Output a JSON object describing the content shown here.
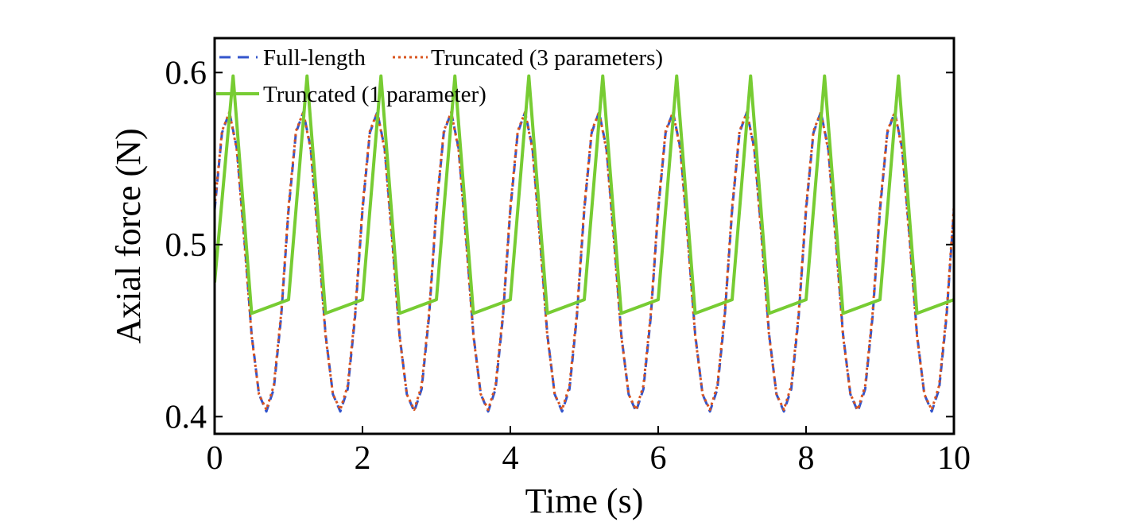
{
  "chart_data": {
    "type": "line",
    "xlabel": "Time (s)",
    "ylabel": "Axial force (N)",
    "xlim": [
      0,
      10
    ],
    "ylim": [
      0.39,
      0.62
    ],
    "xticks": [
      0,
      2,
      4,
      6,
      8,
      10
    ],
    "xtick_labels": [
      "0",
      "2",
      "4",
      "6",
      "8",
      "10"
    ],
    "yticks": [
      0.4,
      0.5,
      0.6
    ],
    "ytick_labels": [
      "0.4",
      "0.5",
      "0.6"
    ],
    "grid": false,
    "legend_position": "top-left",
    "period": 1.0,
    "series": [
      {
        "name": "Full-length",
        "color": "#3355cc",
        "style": "dashed",
        "cycle_x": [
          0,
          0.1,
          0.2,
          0.3,
          0.4,
          0.5,
          0.6,
          0.7,
          0.8,
          0.9,
          1.0
        ],
        "cycle_y": [
          0.52,
          0.565,
          0.577,
          0.556,
          0.505,
          0.448,
          0.413,
          0.403,
          0.416,
          0.458,
          0.52
        ]
      },
      {
        "name": "Truncated (3 parameters)",
        "color": "#d9541e",
        "style": "dotted",
        "cycle_x": [
          0,
          0.1,
          0.2,
          0.3,
          0.4,
          0.5,
          0.6,
          0.7,
          0.8,
          0.9,
          1.0
        ],
        "cycle_y": [
          0.522,
          0.566,
          0.577,
          0.555,
          0.503,
          0.447,
          0.413,
          0.404,
          0.418,
          0.46,
          0.522
        ]
      },
      {
        "name": "Truncated (1 parameter)",
        "color": "#77cc33",
        "style": "solid",
        "x": [
          0,
          0.25,
          0.5,
          0.75,
          1.0,
          1.25,
          1.5,
          1.75,
          2.0,
          2.25,
          2.5,
          2.75,
          3.0,
          3.25,
          3.5,
          3.75,
          4.0,
          4.25,
          4.5,
          4.75,
          5.0,
          5.25,
          5.5,
          5.75,
          6.0,
          6.25,
          6.5,
          6.75,
          7.0,
          7.25,
          7.5,
          7.75,
          8.0,
          8.25,
          8.5,
          8.75,
          9.0,
          9.25,
          9.5,
          9.75,
          10.0
        ],
        "y": [
          0.478,
          0.598,
          0.46,
          0.464,
          0.468,
          0.598,
          0.46,
          0.464,
          0.468,
          0.598,
          0.46,
          0.464,
          0.468,
          0.598,
          0.46,
          0.464,
          0.468,
          0.598,
          0.46,
          0.464,
          0.468,
          0.598,
          0.46,
          0.464,
          0.468,
          0.598,
          0.46,
          0.464,
          0.468,
          0.598,
          0.46,
          0.464,
          0.468,
          0.598,
          0.46,
          0.464,
          0.468,
          0.598,
          0.46,
          0.464,
          0.468
        ]
      }
    ]
  }
}
